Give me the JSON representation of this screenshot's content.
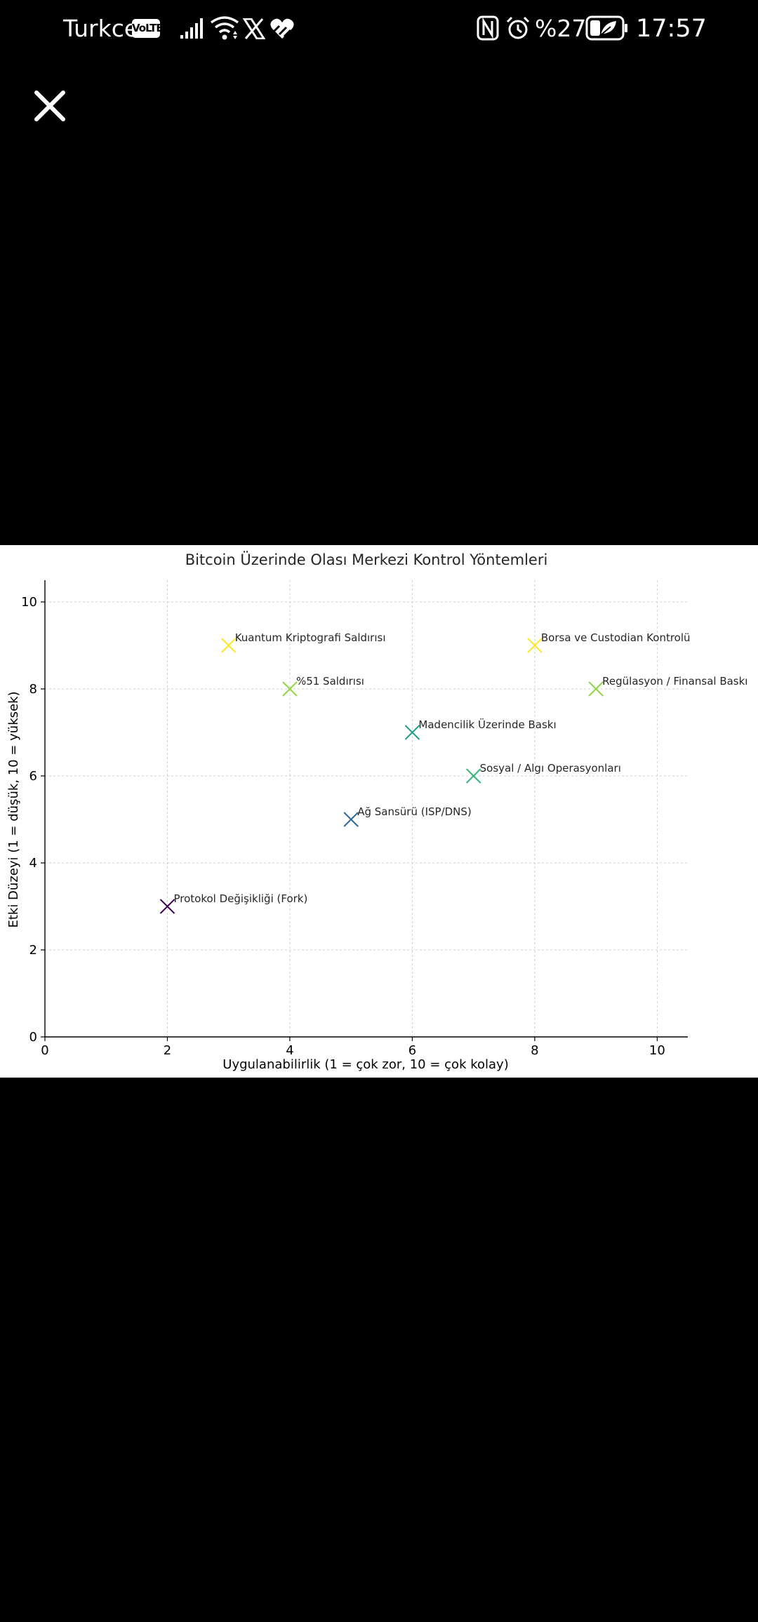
{
  "status_bar": {
    "carrier": "Turkcell",
    "volte": "VoLTE",
    "battery_percent": "%27",
    "time": "17:57",
    "icons": [
      "signal-icon",
      "wifi-icon",
      "x-app-icon",
      "health-app-icon",
      "nfc-icon",
      "alarm-icon",
      "battery-saver-icon"
    ]
  },
  "viewer": {
    "close_icon": "close-icon",
    "background": "#000000"
  },
  "chart_data": {
    "type": "scatter",
    "title": "Bitcoin Üzerinde Olası Merkezi Kontrol Yöntemleri",
    "xlabel": "Uygulanabilirlik (1 = çok zor, 10 = çok kolay)",
    "ylabel": "Etki Düzeyi (1 = düşük, 10 = yüksek)",
    "xlim": [
      0,
      10.5
    ],
    "ylim": [
      0,
      10.5
    ],
    "xticks": [
      0,
      2,
      4,
      6,
      8,
      10
    ],
    "yticks": [
      0,
      2,
      4,
      6,
      8,
      10
    ],
    "grid": true,
    "marker": "x",
    "points": [
      {
        "label": "Protokol Değişikliği (Fork)",
        "x": 2,
        "y": 3,
        "color": "#440154"
      },
      {
        "label": "Ağ Sansürü (ISP/DNS)",
        "x": 5,
        "y": 5,
        "color": "#31688e"
      },
      {
        "label": "Sosyal / Algı Operasyonları",
        "x": 7,
        "y": 6,
        "color": "#35b779"
      },
      {
        "label": "Madencilik Üzerinde Baskı",
        "x": 6,
        "y": 7,
        "color": "#1f9e89"
      },
      {
        "label": "%51 Saldırısı",
        "x": 4,
        "y": 8,
        "color": "#90d743"
      },
      {
        "label": "Regülasyon / Finansal Baskı",
        "x": 9,
        "y": 8,
        "color": "#90d743"
      },
      {
        "label": "Kuantum Kriptografi Saldırısı",
        "x": 3,
        "y": 9,
        "color": "#fde725"
      },
      {
        "label": "Borsa ve Custodian Kontrolü",
        "x": 8,
        "y": 9,
        "color": "#fde725"
      }
    ]
  }
}
